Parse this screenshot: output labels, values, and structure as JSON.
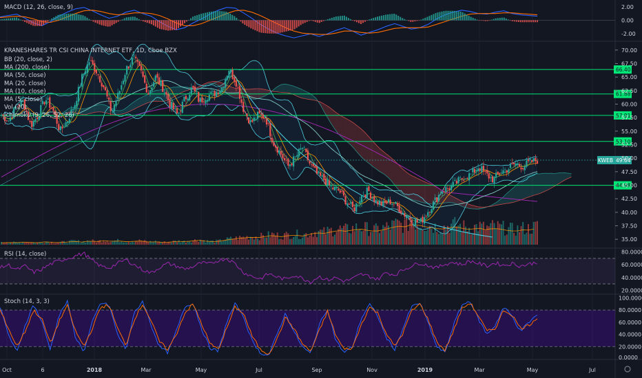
{
  "chart_data": [
    {
      "type": "line",
      "panel": "macd",
      "title": "MACD (12, 26, close, 9)",
      "y_ticks": [
        "2.00",
        "0.00",
        "-2.00"
      ],
      "ylim": [
        -3,
        3
      ],
      "series": [
        {
          "name": "MACD",
          "color": "#2962ff",
          "values": [
            0.5,
            0.7,
            0.9,
            0.3,
            -0.4,
            -0.8,
            -0.2,
            0.6,
            1.2,
            1.7,
            1.9,
            1.4,
            0.8,
            0.3,
            0.6,
            1.2,
            1.5,
            1.0,
            0.6,
            -0.2,
            -0.9,
            -1.4,
            -1.1,
            -0.4,
            0.2,
            0.9,
            1.5,
            1.9,
            1.8,
            1.1,
            0.3,
            -0.6,
            -1.3,
            -1.9,
            -2.3,
            -2.6,
            -2.3,
            -2.0,
            -2.4,
            -2.0,
            -1.5,
            -1.1,
            -1.6,
            -2.2,
            -1.8,
            -1.4,
            -0.9,
            -0.5,
            -0.9,
            -1.3,
            -1.1,
            -0.6,
            0.2,
            0.8,
            1.2,
            1.5,
            1.3,
            1.0,
            0.9,
            1.2,
            1.4,
            1.0,
            0.8,
            0.7,
            0.6
          ]
        },
        {
          "name": "Signal",
          "color": "#ff6d00",
          "values": [
            0.4,
            0.5,
            0.6,
            0.5,
            0.2,
            -0.2,
            -0.3,
            0.0,
            0.5,
            1.0,
            1.4,
            1.5,
            1.3,
            1.0,
            0.8,
            0.9,
            1.1,
            1.1,
            1.0,
            0.7,
            0.2,
            -0.4,
            -0.8,
            -0.8,
            -0.5,
            0.0,
            0.5,
            1.0,
            1.4,
            1.5,
            1.2,
            0.7,
            0.1,
            -0.5,
            -1.1,
            -1.6,
            -1.9,
            -2.0,
            -2.1,
            -2.1,
            -1.9,
            -1.6,
            -1.6,
            -1.8,
            -1.9,
            -1.8,
            -1.5,
            -1.2,
            -1.1,
            -1.1,
            -1.1,
            -1.0,
            -0.6,
            -0.2,
            0.2,
            0.6,
            0.9,
            1.0,
            1.0,
            1.0,
            1.1,
            1.1,
            1.0,
            0.9,
            0.8
          ]
        }
      ]
    },
    {
      "type": "candlestick",
      "panel": "price",
      "title": "KRANESHARES TR CSI CHINA INTERNET ETF, 1D, Cboe BZX",
      "legend": [
        "BB (20, close, 2)",
        "MA (200, close)",
        "MA (50, close)",
        "MA (20, close)",
        "MA (10, close)",
        "MA (5, close)",
        "Vol (20)",
        "Ichimoku (9, 26, 52, 26)"
      ],
      "y_ticks": [
        "70.00",
        "67.50",
        "65.00",
        "62.50",
        "60.00",
        "57.50",
        "55.00",
        "52.50",
        "50.00",
        "47.50",
        "45.00",
        "42.50",
        "40.00",
        "37.50",
        "35.00"
      ],
      "ylim": [
        33.5,
        71.5
      ],
      "x_ticks": [
        "Oct",
        "6",
        "2018",
        "Mar",
        "May",
        "Jul",
        "Sep",
        "Nov",
        "2019",
        "Mar",
        "May",
        "Jul"
      ],
      "horizontal_levels": [
        {
          "label": "66.40",
          "value": 66.4
        },
        {
          "label": "61.88",
          "value": 61.88
        },
        {
          "label": "57.91",
          "value": 57.91
        },
        {
          "label": "53.10",
          "value": 53.1
        },
        {
          "label": "44.98",
          "value": 44.98
        }
      ],
      "last_price": {
        "symbol": "KWEB",
        "label": "49.64",
        "value": 49.64
      },
      "close_path": [
        58.0,
        57.0,
        59.5,
        60.5,
        56.0,
        58.0,
        61.0,
        59.0,
        55.0,
        57.0,
        60.0,
        65.0,
        68.0,
        66.0,
        63.0,
        58.5,
        62.0,
        66.5,
        68.5,
        66.0,
        62.0,
        65.0,
        63.0,
        60.0,
        58.0,
        61.0,
        63.0,
        60.5,
        61.5,
        62.0,
        63.0,
        66.5,
        64.0,
        59.0,
        56.5,
        58.0,
        57.5,
        53.0,
        51.0,
        48.5,
        50.0,
        52.0,
        49.0,
        47.0,
        46.0,
        44.5,
        44.0,
        42.0,
        40.5,
        43.0,
        44.0,
        42.0,
        41.5,
        42.0,
        41.0,
        39.5,
        38.5,
        38.0,
        40.0,
        42.0,
        44.0,
        44.5,
        45.5,
        46.5,
        47.0,
        48.5,
        47.0,
        46.0,
        47.5,
        48.0,
        49.0,
        48.5,
        49.2,
        49.64
      ],
      "volume_relative": [
        0.05,
        0.06,
        0.05,
        0.07,
        0.06,
        0.05,
        0.08,
        0.06,
        0.06,
        0.07,
        0.09,
        0.07,
        0.1,
        0.08,
        0.11,
        0.09,
        0.1,
        0.08,
        0.09,
        0.1,
        0.07,
        0.08,
        0.06,
        0.07,
        0.09,
        0.08,
        0.1,
        0.12,
        0.09,
        0.08,
        0.1,
        0.14,
        0.16,
        0.18,
        0.2,
        0.19,
        0.22,
        0.25,
        0.21,
        0.24,
        0.26,
        0.23,
        0.28,
        0.32,
        0.3,
        0.35,
        0.38,
        0.36,
        0.4,
        0.42,
        0.38,
        0.36,
        0.4,
        0.45,
        0.5,
        0.48,
        0.55,
        0.52,
        0.47,
        0.44,
        0.42,
        0.46,
        0.48,
        0.43,
        0.41,
        0.45,
        0.4,
        0.44,
        0.42,
        0.38,
        0.36,
        0.4,
        0.39,
        0.45
      ]
    },
    {
      "type": "line",
      "panel": "rsi",
      "title": "RSI (14, close)",
      "y_ticks": [
        "80.0000",
        "60.0000",
        "40.0000",
        "20.0000"
      ],
      "ylim": [
        15,
        85
      ],
      "bands": [
        30,
        70
      ],
      "series": [
        {
          "name": "RSI",
          "color": "#9c27b0",
          "values": [
            55,
            60,
            52,
            58,
            48,
            53,
            61,
            66,
            70,
            74,
            78,
            66,
            58,
            55,
            62,
            68,
            60,
            52,
            47,
            56,
            62,
            58,
            53,
            57,
            63,
            61,
            67,
            70,
            62,
            48,
            42,
            38,
            46,
            41,
            37,
            44,
            39,
            33,
            42,
            36,
            40,
            34,
            38,
            45,
            42,
            37,
            48,
            44,
            52,
            58,
            63,
            59,
            55,
            61,
            64,
            60,
            66,
            62,
            58,
            63,
            59,
            62,
            58,
            61,
            64
          ]
        }
      ]
    },
    {
      "type": "line",
      "panel": "stoch",
      "title": "Stoch (14, 3, 3)",
      "y_ticks": [
        "100.0000",
        "80.0000",
        "60.0000",
        "40.0000",
        "20.0000",
        "0.0000"
      ],
      "ylim": [
        0,
        105
      ],
      "bands": [
        20,
        80
      ],
      "series": [
        {
          "name": "%K",
          "color": "#2962ff",
          "values": [
            85,
            40,
            10,
            55,
            90,
            60,
            15,
            70,
            95,
            35,
            12,
            60,
            92,
            88,
            40,
            15,
            75,
            95,
            55,
            20,
            10,
            45,
            85,
            92,
            50,
            18,
            12,
            60,
            90,
            70,
            30,
            10,
            5,
            40,
            75,
            45,
            20,
            8,
            55,
            82,
            30,
            10,
            20,
            65,
            90,
            70,
            35,
            15,
            50,
            85,
            92,
            60,
            20,
            10,
            55,
            88,
            95,
            65,
            40,
            55,
            85,
            70,
            45,
            60,
            72
          ]
        },
        {
          "name": "%D",
          "color": "#ff6d00",
          "values": [
            80,
            50,
            20,
            45,
            80,
            65,
            25,
            60,
            88,
            45,
            20,
            50,
            85,
            88,
            50,
            22,
            65,
            90,
            62,
            28,
            15,
            40,
            75,
            90,
            58,
            25,
            15,
            50,
            85,
            75,
            38,
            15,
            8,
            32,
            68,
            50,
            25,
            12,
            45,
            78,
            38,
            15,
            18,
            55,
            85,
            75,
            42,
            20,
            42,
            78,
            90,
            65,
            28,
            14,
            45,
            82,
            92,
            70,
            45,
            50,
            80,
            72,
            50,
            55,
            68
          ]
        }
      ]
    }
  ]
}
